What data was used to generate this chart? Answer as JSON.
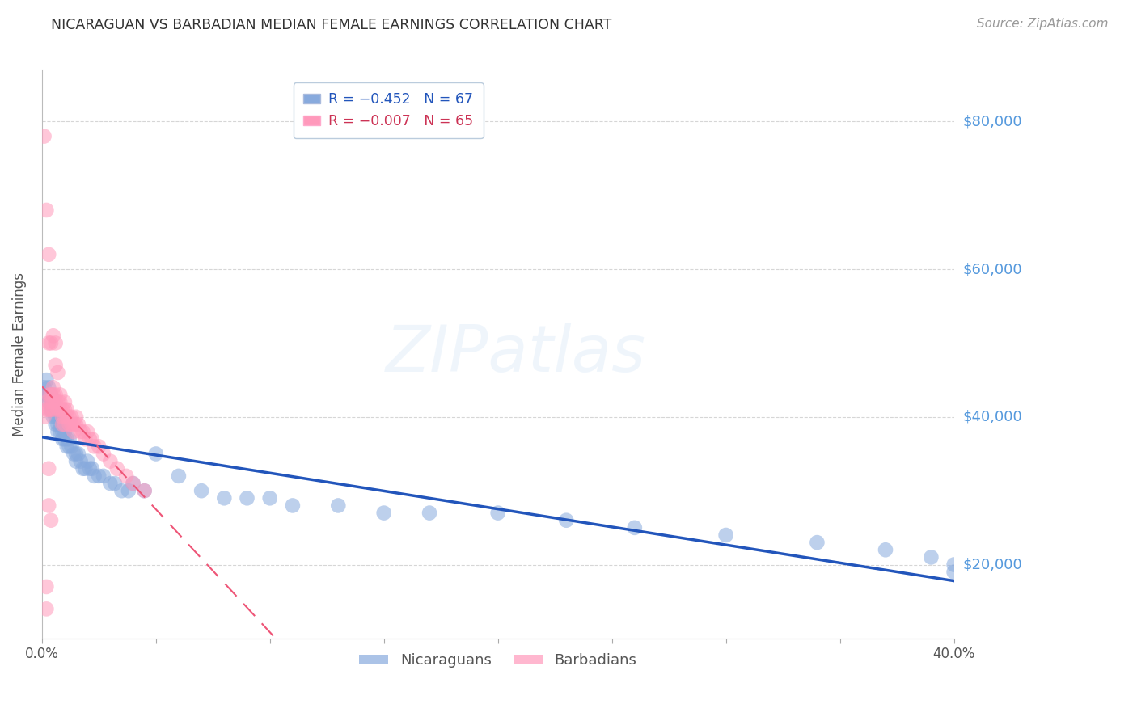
{
  "title": "NICARAGUAN VS BARBADIAN MEDIAN FEMALE EARNINGS CORRELATION CHART",
  "source": "Source: ZipAtlas.com",
  "ylabel": "Median Female Earnings",
  "xlim": [
    0.0,
    0.4
  ],
  "ylim": [
    10000,
    87000
  ],
  "yticks": [
    20000,
    40000,
    60000,
    80000
  ],
  "ytick_labels": [
    "$20,000",
    "$40,000",
    "$60,000",
    "$80,000"
  ],
  "xticks": [
    0.0,
    0.05,
    0.1,
    0.15,
    0.2,
    0.25,
    0.3,
    0.35,
    0.4
  ],
  "xtick_labels": [
    "0.0%",
    "",
    "",
    "",
    "",
    "",
    "",
    "",
    "40.0%"
  ],
  "blue_color": "#88AADD",
  "pink_color": "#FF99BB",
  "blue_line_color": "#2255BB",
  "pink_line_color": "#EE5577",
  "blue_label": "Nicaraguans",
  "pink_label": "Barbadians",
  "watermark": "ZIPatlas",
  "background_color": "#FFFFFF",
  "grid_color": "#CCCCCC",
  "right_label_color": "#5599DD",
  "blue_x": [
    0.001,
    0.002,
    0.002,
    0.003,
    0.003,
    0.003,
    0.004,
    0.004,
    0.004,
    0.005,
    0.005,
    0.005,
    0.006,
    0.006,
    0.006,
    0.007,
    0.007,
    0.007,
    0.008,
    0.008,
    0.009,
    0.009,
    0.01,
    0.01,
    0.011,
    0.011,
    0.012,
    0.012,
    0.013,
    0.014,
    0.015,
    0.015,
    0.016,
    0.017,
    0.018,
    0.019,
    0.02,
    0.021,
    0.022,
    0.023,
    0.025,
    0.027,
    0.03,
    0.032,
    0.035,
    0.038,
    0.04,
    0.045,
    0.05,
    0.06,
    0.07,
    0.08,
    0.09,
    0.1,
    0.11,
    0.13,
    0.15,
    0.17,
    0.2,
    0.23,
    0.26,
    0.3,
    0.34,
    0.37,
    0.39,
    0.4,
    0.4
  ],
  "blue_y": [
    44000,
    43000,
    45000,
    42000,
    43000,
    44000,
    41000,
    43000,
    42000,
    42000,
    40000,
    41000,
    41000,
    39000,
    40000,
    40000,
    38000,
    39000,
    38000,
    39000,
    37000,
    38000,
    38000,
    37000,
    37000,
    36000,
    36000,
    37000,
    36000,
    35000,
    35000,
    34000,
    35000,
    34000,
    33000,
    33000,
    34000,
    33000,
    33000,
    32000,
    32000,
    32000,
    31000,
    31000,
    30000,
    30000,
    31000,
    30000,
    35000,
    32000,
    30000,
    29000,
    29000,
    29000,
    28000,
    28000,
    27000,
    27000,
    27000,
    26000,
    25000,
    24000,
    23000,
    22000,
    21000,
    20000,
    19000
  ],
  "pink_x": [
    0.001,
    0.001,
    0.002,
    0.002,
    0.002,
    0.003,
    0.003,
    0.003,
    0.003,
    0.004,
    0.004,
    0.004,
    0.004,
    0.005,
    0.005,
    0.005,
    0.005,
    0.005,
    0.006,
    0.006,
    0.006,
    0.006,
    0.007,
    0.007,
    0.007,
    0.008,
    0.008,
    0.008,
    0.009,
    0.009,
    0.009,
    0.01,
    0.01,
    0.01,
    0.01,
    0.011,
    0.011,
    0.012,
    0.012,
    0.013,
    0.013,
    0.014,
    0.014,
    0.015,
    0.015,
    0.016,
    0.017,
    0.018,
    0.019,
    0.02,
    0.021,
    0.022,
    0.023,
    0.025,
    0.027,
    0.03,
    0.033,
    0.037,
    0.04,
    0.045,
    0.002,
    0.002,
    0.003,
    0.003,
    0.004
  ],
  "pink_y": [
    78000,
    40000,
    68000,
    42000,
    41000,
    62000,
    50000,
    43000,
    41000,
    50000,
    43000,
    42000,
    41000,
    51000,
    44000,
    43000,
    42000,
    41000,
    50000,
    47000,
    43000,
    42000,
    46000,
    42000,
    41000,
    43000,
    42000,
    41000,
    41000,
    40000,
    39000,
    42000,
    41000,
    40000,
    39000,
    41000,
    40000,
    40000,
    39000,
    40000,
    39000,
    39000,
    38000,
    40000,
    39000,
    39000,
    38000,
    38000,
    37000,
    38000,
    37000,
    37000,
    36000,
    36000,
    35000,
    34000,
    33000,
    32000,
    31000,
    30000,
    17000,
    14000,
    33000,
    28000,
    26000
  ]
}
